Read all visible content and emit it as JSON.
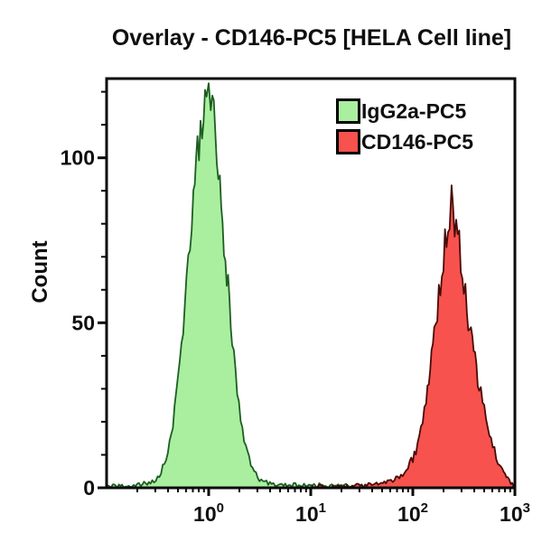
{
  "chart_data": {
    "type": "area",
    "variant": "flow-cytometry-overlay-histogram",
    "title": "Overlay - CD146-PC5 [HELA Cell line]",
    "xlabel": "",
    "ylabel": "Count",
    "x_scale": "log10",
    "x_range_decades": [
      -1,
      3
    ],
    "x_ticks": [
      {
        "base": "10",
        "exponent": 0
      },
      {
        "base": "10",
        "exponent": 1
      },
      {
        "base": "10",
        "exponent": 2
      },
      {
        "base": "10",
        "exponent": 3
      }
    ],
    "y_ticks": [
      0,
      50,
      100
    ],
    "y_minor_step": 10,
    "ylim": [
      0,
      124
    ],
    "grid": false,
    "legend_position": "top-right-inside",
    "axis_color": "#0a0a0a",
    "series": [
      {
        "id": "igg2a",
        "name": "IgG2a-PC5",
        "fill": "#aaefa0",
        "stroke": "#1d5e20",
        "seed": 7,
        "peak": {
          "x": 1.0,
          "count": 119
        },
        "points": [
          [
            -1.0,
            0.2
          ],
          [
            -0.88,
            0.4
          ],
          [
            -0.75,
            0.7
          ],
          [
            -0.65,
            1.0
          ],
          [
            -0.57,
            1.6
          ],
          [
            -0.5,
            3
          ],
          [
            -0.45,
            6
          ],
          [
            -0.4,
            11
          ],
          [
            -0.35,
            19
          ],
          [
            -0.3,
            32
          ],
          [
            -0.25,
            49
          ],
          [
            -0.2,
            69
          ],
          [
            -0.15,
            88
          ],
          [
            -0.11,
            101
          ],
          [
            -0.08,
            108
          ],
          [
            -0.05,
            113
          ],
          [
            -0.02,
            117
          ],
          [
            0.0,
            119
          ],
          [
            0.02,
            116
          ],
          [
            0.05,
            112
          ],
          [
            0.08,
            103
          ],
          [
            0.11,
            92
          ],
          [
            0.15,
            76
          ],
          [
            0.19,
            60
          ],
          [
            0.23,
            45
          ],
          [
            0.28,
            30
          ],
          [
            0.33,
            18
          ],
          [
            0.38,
            10
          ],
          [
            0.43,
            5.5
          ],
          [
            0.48,
            3
          ],
          [
            0.55,
            1.6
          ],
          [
            0.65,
            1.0
          ],
          [
            0.8,
            0.8
          ],
          [
            0.95,
            0.6
          ],
          [
            1.1,
            0.8
          ],
          [
            1.3,
            0.6
          ],
          [
            1.5,
            0.5
          ],
          [
            1.7,
            0.4
          ],
          [
            1.95,
            0.3
          ],
          [
            2.2,
            0.2
          ],
          [
            2.6,
            0.15
          ],
          [
            3.0,
            0.1
          ]
        ]
      },
      {
        "id": "cd146",
        "name": "CD146-PC5",
        "fill": "#f7524e",
        "stroke": "#490b07",
        "seed": 13,
        "peak": {
          "x": 230,
          "count": 87
        },
        "points": [
          [
            1.0,
            0.15
          ],
          [
            1.25,
            0.3
          ],
          [
            1.45,
            0.5
          ],
          [
            1.6,
            0.9
          ],
          [
            1.72,
            1.5
          ],
          [
            1.82,
            2.5
          ],
          [
            1.9,
            4
          ],
          [
            1.97,
            7
          ],
          [
            2.03,
            11
          ],
          [
            2.08,
            17
          ],
          [
            2.13,
            26
          ],
          [
            2.17,
            35
          ],
          [
            2.21,
            46
          ],
          [
            2.24,
            54
          ],
          [
            2.27,
            62
          ],
          [
            2.3,
            70
          ],
          [
            2.33,
            78
          ],
          [
            2.36,
            84
          ],
          [
            2.38,
            87
          ],
          [
            2.41,
            82
          ],
          [
            2.44,
            76
          ],
          [
            2.47,
            70
          ],
          [
            2.5,
            62
          ],
          [
            2.53,
            54
          ],
          [
            2.57,
            46
          ],
          [
            2.61,
            38
          ],
          [
            2.65,
            31
          ],
          [
            2.7,
            23
          ],
          [
            2.75,
            16
          ],
          [
            2.8,
            11
          ],
          [
            2.85,
            7
          ],
          [
            2.89,
            4.5
          ],
          [
            2.93,
            2.8
          ],
          [
            2.96,
            1.5
          ],
          [
            3.0,
            0.6
          ]
        ]
      }
    ]
  }
}
